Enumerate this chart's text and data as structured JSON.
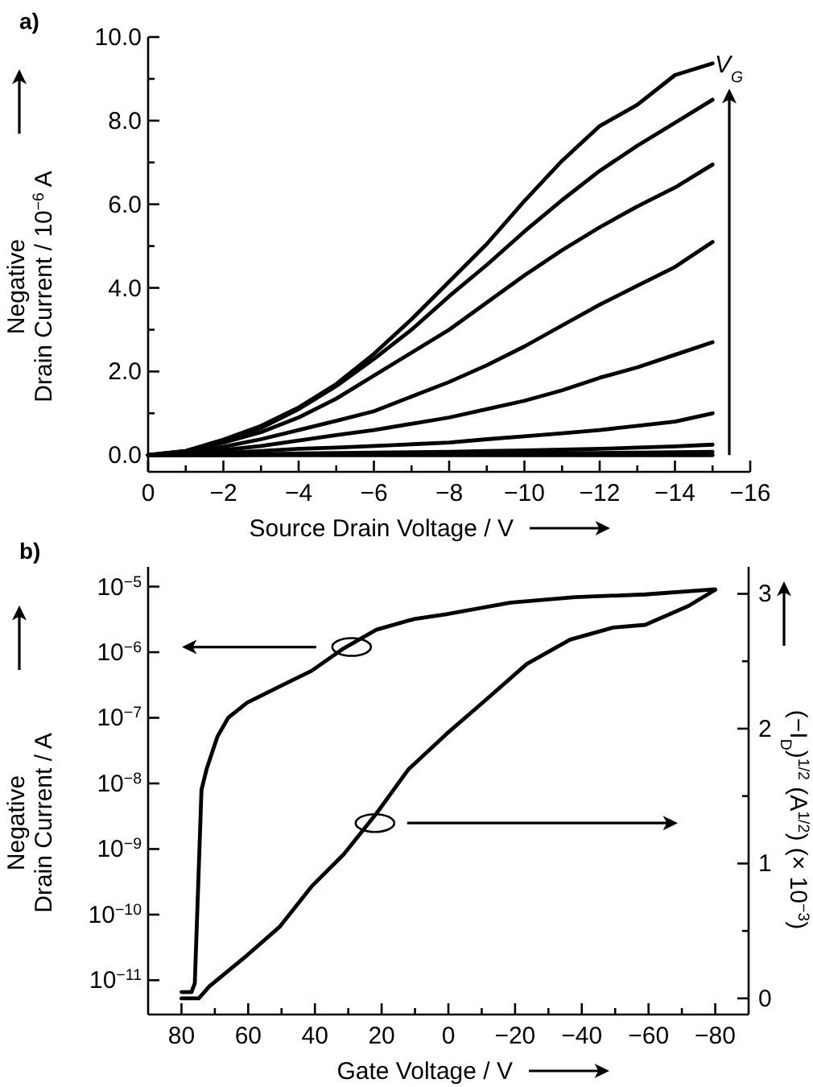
{
  "chart_data": [
    {
      "type": "line",
      "title": "a)",
      "xlabel": "Source Drain Voltage / V",
      "ylabel": "Negative\nDrain Current / 10$^{−6}$ A",
      "annotations": [
        "V$_{G}$"
      ],
      "xlim": [
        0,
        -16
      ],
      "ylim": [
        -0.4,
        10
      ],
      "xticks": [
        {
          "value": 0,
          "label": "0"
        },
        {
          "value": -1,
          "label": null
        },
        {
          "value": -2,
          "label": "−2"
        },
        {
          "value": -3,
          "label": null
        },
        {
          "value": -4,
          "label": "−4"
        },
        {
          "value": -5,
          "label": null
        },
        {
          "value": -6,
          "label": "−6"
        },
        {
          "value": -7,
          "label": null
        },
        {
          "value": -8,
          "label": "−8"
        },
        {
          "value": -9,
          "label": null
        },
        {
          "value": -10,
          "label": "−10"
        },
        {
          "value": -11,
          "label": null
        },
        {
          "value": -12,
          "label": "−12"
        },
        {
          "value": -13,
          "label": null
        },
        {
          "value": -14,
          "label": "−14"
        },
        {
          "value": -15,
          "label": null
        },
        {
          "value": -16,
          "label": "−16"
        }
      ],
      "yticks": [
        {
          "value": 0,
          "label": "0.0"
        },
        {
          "value": 1,
          "label": null
        },
        {
          "value": 2,
          "label": "2.0"
        },
        {
          "value": 3,
          "label": null
        },
        {
          "value": 4,
          "label": "4.0"
        },
        {
          "value": 5,
          "label": null
        },
        {
          "value": 6,
          "label": "6.0"
        },
        {
          "value": 7,
          "label": null
        },
        {
          "value": 8,
          "label": "8.0"
        },
        {
          "value": 9,
          "label": null
        },
        {
          "value": 10,
          "label": "10.0"
        }
      ],
      "x": [
        0,
        -1,
        -2,
        -3,
        -4,
        -5,
        -6,
        -7,
        -8,
        -9,
        -10,
        -11,
        -12,
        -13,
        -14,
        -15
      ],
      "series": [
        {
          "color": "#000000",
          "values": [
            0,
            0.1,
            0.37,
            0.7,
            1.14,
            1.7,
            2.42,
            3.25,
            4.15,
            5.05,
            6.08,
            7.04,
            7.87,
            8.38,
            9.09,
            9.37
          ]
        },
        {
          "color": "#000000",
          "values": [
            0,
            0.1,
            0.35,
            0.65,
            1.1,
            1.65,
            2.3,
            3.0,
            3.8,
            4.55,
            5.35,
            6.1,
            6.8,
            7.4,
            7.95,
            8.5
          ]
        },
        {
          "color": "#000000",
          "values": [
            0,
            0.08,
            0.3,
            0.55,
            0.9,
            1.35,
            1.9,
            2.45,
            3.0,
            3.65,
            4.3,
            4.9,
            5.45,
            5.95,
            6.4,
            6.95
          ]
        },
        {
          "color": "#000000",
          "values": [
            0,
            0.05,
            0.2,
            0.38,
            0.6,
            0.82,
            1.05,
            1.4,
            1.75,
            2.15,
            2.6,
            3.1,
            3.6,
            4.05,
            4.5,
            5.1
          ]
        },
        {
          "color": "#000000",
          "values": [
            0,
            0.03,
            0.12,
            0.22,
            0.35,
            0.48,
            0.6,
            0.75,
            0.9,
            1.1,
            1.3,
            1.55,
            1.85,
            2.1,
            2.4,
            2.7
          ]
        },
        {
          "color": "#000000",
          "values": [
            0,
            0.01,
            0.05,
            0.1,
            0.15,
            0.18,
            0.22,
            0.26,
            0.3,
            0.38,
            0.45,
            0.52,
            0.6,
            0.7,
            0.8,
            1.0
          ]
        },
        {
          "color": "#000000",
          "values": [
            0,
            0,
            0.01,
            0.02,
            0.04,
            0.05,
            0.06,
            0.07,
            0.08,
            0.1,
            0.11,
            0.13,
            0.15,
            0.18,
            0.21,
            0.25
          ]
        },
        {
          "color": "#000000",
          "values": [
            0,
            0,
            0,
            0.01,
            0.01,
            0.02,
            0.02,
            0.03,
            0.03,
            0.04,
            0.04,
            0.05,
            0.05,
            0.06,
            0.07,
            0.08
          ]
        },
        {
          "color": "#000000",
          "values": [
            0,
            0,
            0,
            0,
            0,
            0,
            0,
            0,
            0,
            0,
            0,
            0,
            0,
            0,
            0,
            0
          ]
        }
      ]
    },
    {
      "type": "line",
      "title": "b)",
      "xlabel": "Gate Voltage / V",
      "ylabel": "Negative\nDrain Current / A",
      "y2label": "(−I$_{D}$)$^{1/2}$ (A$^{1/2}$) (× 10$^{−3}$)",
      "log": "y",
      "xlim": [
        90,
        -90
      ],
      "ylim": [
        3e-12,
        2e-05
      ],
      "y2lim": [
        -0.12,
        3.2
      ],
      "xticks": [
        {
          "value": 80,
          "label": "80"
        },
        {
          "value": 70,
          "label": null
        },
        {
          "value": 60,
          "label": "60"
        },
        {
          "value": 50,
          "label": null
        },
        {
          "value": 40,
          "label": "40"
        },
        {
          "value": 30,
          "label": null
        },
        {
          "value": 20,
          "label": "20"
        },
        {
          "value": 10,
          "label": null
        },
        {
          "value": 0,
          "label": "0"
        },
        {
          "value": -10,
          "label": null
        },
        {
          "value": -20,
          "label": "−20"
        },
        {
          "value": -30,
          "label": null
        },
        {
          "value": -40,
          "label": "−40"
        },
        {
          "value": -50,
          "label": null
        },
        {
          "value": -60,
          "label": "−60"
        },
        {
          "value": -70,
          "label": null
        },
        {
          "value": -80,
          "label": "−80"
        }
      ],
      "yticks": [
        {
          "value": 1e-11,
          "label": "10$^{−11}$"
        },
        {
          "value": 1e-10,
          "label": "10$^{−10}$"
        },
        {
          "value": 1e-09,
          "label": "10$^{−9}$"
        },
        {
          "value": 1e-08,
          "label": "10$^{−8}$"
        },
        {
          "value": 1e-07,
          "label": "10$^{−7}$"
        },
        {
          "value": 1e-06,
          "label": "10$^{−6}$"
        },
        {
          "value": 1e-05,
          "label": "10$^{−5}$"
        }
      ],
      "y2ticks": [
        0,
        {
          "value": 0.5,
          "label": null
        },
        1,
        {
          "value": 1.5,
          "label": null
        },
        2,
        {
          "value": 2.5,
          "label": null
        },
        3
      ],
      "series": [
        {
          "color": "#000000",
          "x": [
            80,
            77,
            76,
            74,
            72.4,
            69.2,
            66,
            60.3,
            50.6,
            41,
            31.3,
            21.6,
            10.3,
            0.6,
            -18.7,
            -38,
            -59,
            -80
          ],
          "values": [
            6.6e-12,
            6.6e-12,
            9e-12,
            8e-09,
            1.7e-08,
            5.2e-08,
            1e-07,
            1.7e-07,
            3e-07,
            5.2e-07,
            1.15e-06,
            2.2e-06,
            3.2e-06,
            3.8e-06,
            5.7e-06,
            6.9e-06,
            7.6e-06,
            9.1e-06
          ]
        },
        {
          "color": "#000000",
          "axis": "y2",
          "x": [
            80,
            74.8,
            71.6,
            60.3,
            50.6,
            41,
            31.3,
            21.6,
            11.9,
            0.6,
            -10.6,
            -23.5,
            -36.5,
            -49.4,
            -59,
            -72,
            -80
          ],
          "values": [
            0,
            0,
            0.09,
            0.32,
            0.53,
            0.83,
            1.07,
            1.37,
            1.7,
            1.96,
            2.2,
            2.48,
            2.66,
            2.75,
            2.77,
            2.91,
            3.03
          ]
        }
      ]
    }
  ]
}
